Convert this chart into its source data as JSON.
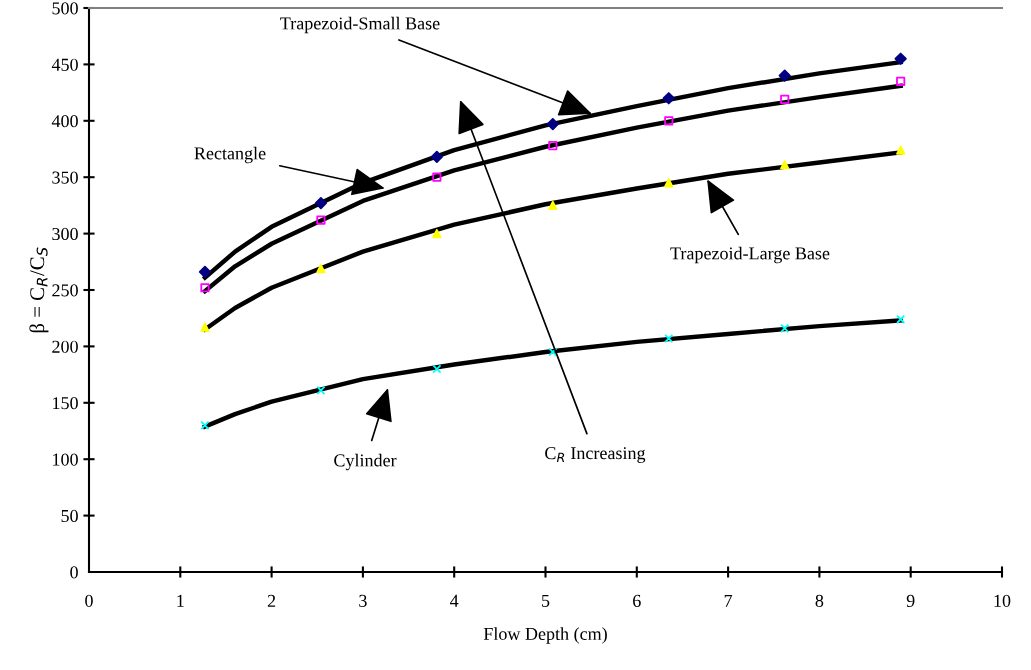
{
  "chart_data": {
    "type": "scatter",
    "xlabel": "Flow Depth (cm)",
    "ylabel": "β = C$_{R}$/C$_{S}$",
    "xlim": [
      0,
      10
    ],
    "xticks": [
      0,
      1,
      2,
      3,
      4,
      5,
      6,
      7,
      8,
      9,
      10
    ],
    "ylim": [
      0,
      500
    ],
    "yticks": [
      0,
      50,
      100,
      150,
      200,
      250,
      300,
      350,
      400,
      450,
      500
    ],
    "grid": false,
    "series": [
      {
        "marker": "diamond",
        "color": "#000080",
        "x": [
          1.27,
          2.54,
          3.81,
          5.08,
          6.35,
          7.62,
          8.89
        ],
        "values": [
          266,
          327,
          368,
          397,
          420,
          440,
          455
        ]
      },
      {
        "marker": "square",
        "color": "#ff00ff",
        "x": [
          1.27,
          2.54,
          3.81,
          5.08,
          6.35,
          7.62,
          8.89
        ],
        "values": [
          252,
          312,
          350,
          378,
          400,
          419,
          435
        ]
      },
      {
        "marker": "triangle",
        "color": "#ffff00",
        "x": [
          1.27,
          2.54,
          3.81,
          5.08,
          6.35,
          7.62,
          8.89
        ],
        "values": [
          217,
          269,
          300,
          325,
          345,
          361,
          374
        ]
      },
      {
        "marker": "cross",
        "color": "#00ffff",
        "x": [
          1.27,
          2.54,
          3.81,
          5.08,
          6.35,
          7.62,
          8.89
        ],
        "values": [
          130,
          161,
          180,
          195,
          207,
          216,
          224
        ]
      },
      {
        "type": "line",
        "color": "#000000",
        "x": [
          1.27,
          1.6,
          2,
          3,
          4,
          5,
          6,
          7,
          8,
          8.89
        ],
        "values": [
          261,
          284,
          306,
          345,
          374,
          396,
          413,
          429,
          442,
          452
        ]
      },
      {
        "type": "line",
        "color": "#000000",
        "x": [
          1.27,
          1.6,
          2,
          3,
          4,
          5,
          6,
          7,
          8,
          8.89
        ],
        "values": [
          249,
          271,
          291,
          329,
          356,
          377,
          394,
          409,
          421,
          431
        ]
      },
      {
        "type": "line",
        "color": "#000000",
        "x": [
          1.27,
          1.6,
          2,
          3,
          4,
          5,
          6,
          7,
          8,
          8.89
        ],
        "values": [
          215,
          234,
          252,
          284,
          308,
          326,
          340,
          353,
          363,
          372
        ]
      },
      {
        "type": "line",
        "color": "#000000",
        "x": [
          1.27,
          1.6,
          2,
          3,
          4,
          5,
          6,
          7,
          8,
          8.89
        ],
        "values": [
          129,
          140,
          151,
          171,
          184,
          195,
          204,
          211,
          218,
          223
        ]
      }
    ],
    "annotations": [
      {
        "text": "Trapezoid-Small Base",
        "x": 5.51,
        "y": 406
      },
      {
        "text": "Rectangle",
        "x": 3.24,
        "y": 340
      },
      {
        "text": "Trapezoid-Large Base",
        "x": 6.77,
        "y": 348
      },
      "Cylinder",
      "C$_{R}$ Increasing"
    ]
  }
}
